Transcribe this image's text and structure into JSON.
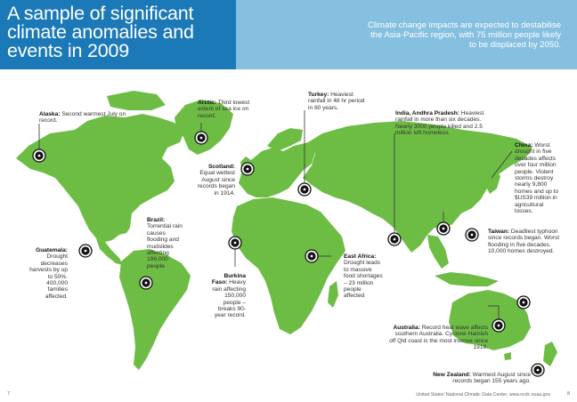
{
  "header": {
    "title": "A sample of significant climate anomalies and events in 2009",
    "subtitle": "Climate change impacts are expected to destabilise the Asia-Pacific region, with 75 million people likely to be displaced by 2050."
  },
  "events": [
    {
      "key": "alaska",
      "place": "Alaska:",
      "text": "Second warmest July on record."
    },
    {
      "key": "arctic",
      "place": "Arctic:",
      "text": "Third lowest extent of sea ice on record."
    },
    {
      "key": "turkey",
      "place": "Turkey:",
      "text": "Heaviest rainfall in 48 hr period in 80 years."
    },
    {
      "key": "india",
      "place": "India, Andhra Pradesh:",
      "text": "Heaviest rainfall in more than six decades. Nearly 3000 people killed and 2.5 million left homeless."
    },
    {
      "key": "china",
      "place": "China:",
      "text": "Worst drought in five decades affects over four million people. Violent storms destroy nearly 9,800 homes and up to $US39 million in agricultural losses."
    },
    {
      "key": "scotland",
      "place": "Scotland:",
      "text": "Equal wettest August since records began in 1914."
    },
    {
      "key": "brazil",
      "place": "Brazil:",
      "text": "Torrential rain causes flooding and mudslides affecting 186,000 people."
    },
    {
      "key": "guatemala",
      "place": "Guatemala:",
      "text": "Drought decreases harvests by up to 50%. 400,000 families affected."
    },
    {
      "key": "burkina",
      "place": "Burkina Faso:",
      "text": "Heavy rain affecting 150,000 people – breaks 90-year record."
    },
    {
      "key": "eastafrica",
      "place": "East Africa:",
      "text": "Drought leads to massive food shortages – 23 million people affected"
    },
    {
      "key": "taiwan",
      "place": "Taiwan:",
      "text": "Deadliest typhoon since records began. Worst flooding in five decades. 10,000 homes destroyed."
    },
    {
      "key": "australia",
      "place": "Australia:",
      "text": "Record heat wave affects southern Australia. Cyclone Hamish off Qld coast is the most intense since 1918."
    },
    {
      "key": "newzealand",
      "place": "New Zealand:",
      "text": "Warmest August since records began 155 years ago."
    }
  ],
  "footer": {
    "left_page": "7",
    "source": "United States' National Climatic Data Center, www.ncdc.noaa.gov",
    "right_page": "8"
  },
  "colors": {
    "header_dark": "#1c79b7",
    "header_light": "#86c0e1",
    "land": "#6dbd45"
  }
}
